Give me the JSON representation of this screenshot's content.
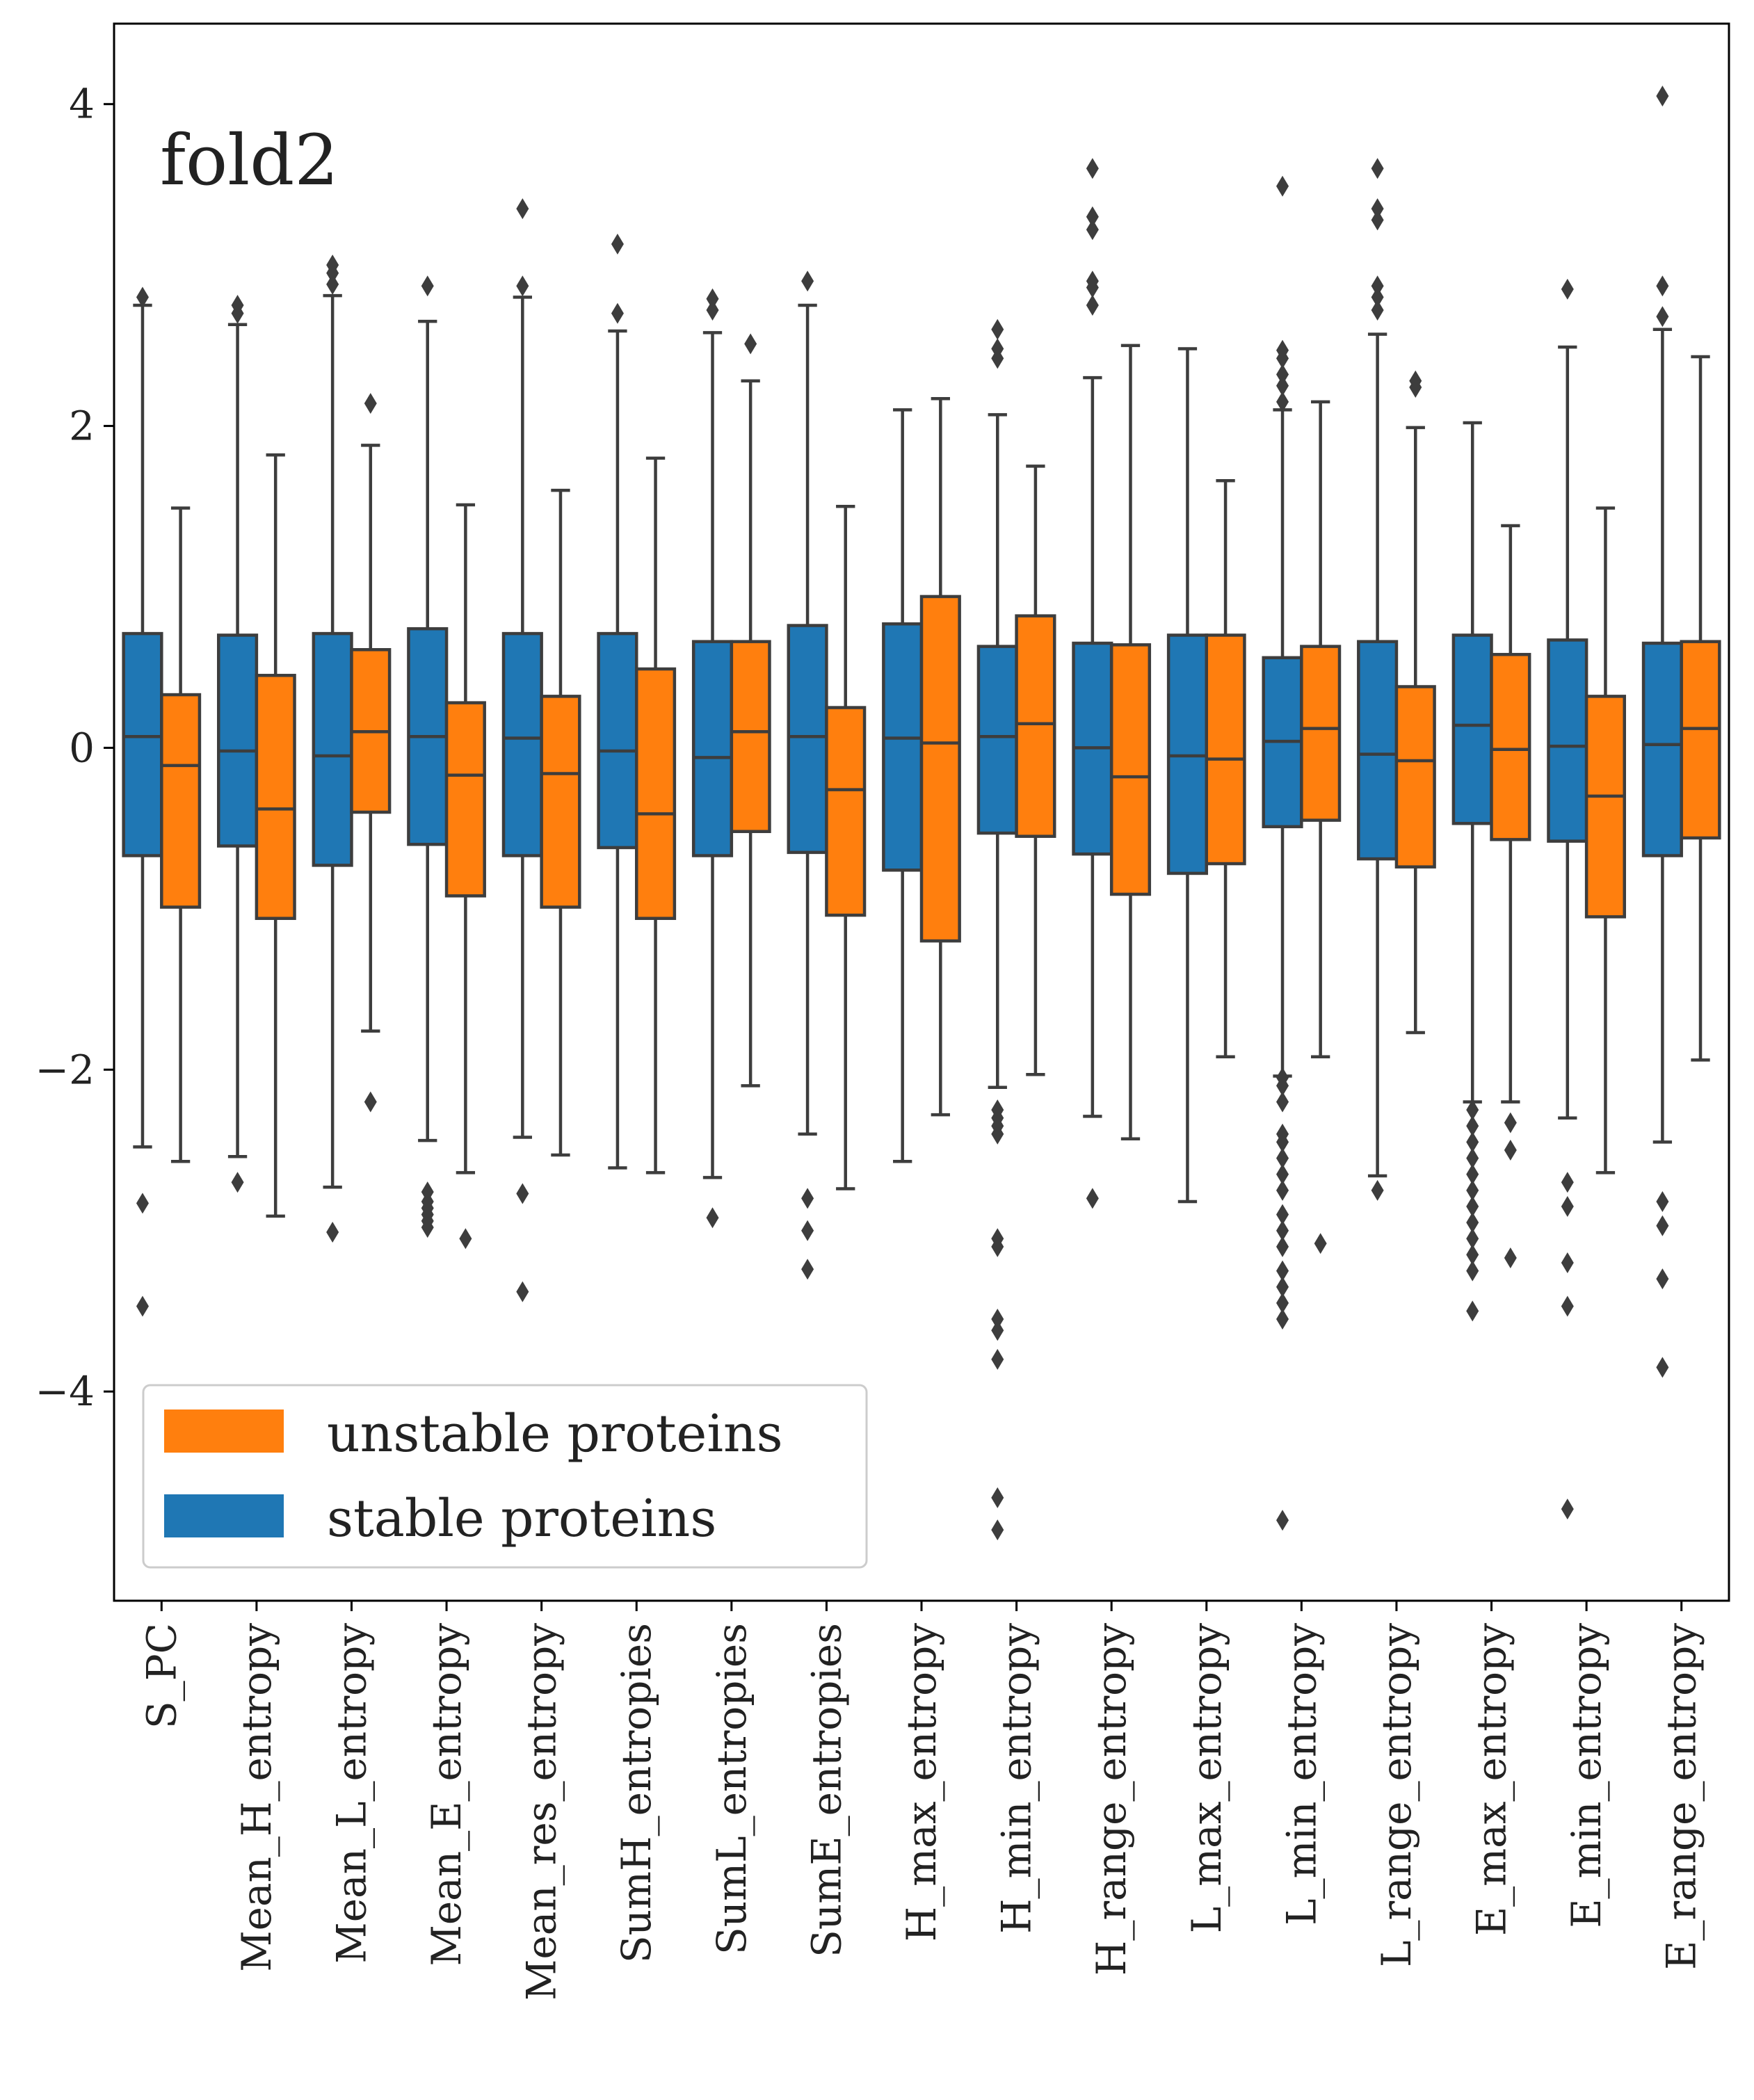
{
  "chart_data": {
    "type": "boxplot",
    "annotation": "fold2",
    "xlabel": "",
    "ylabel": "",
    "ylim": [
      -5.3,
      4.5
    ],
    "yticks": [
      -4,
      -2,
      0,
      2,
      4
    ],
    "ytick_labels": [
      "−4",
      "−2",
      "0",
      "2",
      "4"
    ],
    "grid": false,
    "legend_position": "bottom-left",
    "legend": [
      {
        "label": "unstable proteins",
        "color": "#ff7f0e"
      },
      {
        "label": "stable proteins",
        "color": "#1f77b4"
      }
    ],
    "colors": {
      "stable": "#1f77b4",
      "unstable": "#ff7f0e",
      "edge": "#3d3d3d"
    },
    "categories": [
      "S_PC",
      "Mean_H_entropy",
      "Mean_L_entropy",
      "Mean_E_entropy",
      "Mean_res_entropy",
      "SumH_entropies",
      "SumL_entropies",
      "SumE_entropies",
      "H_max_entropy",
      "H_min_entropy",
      "H_range_entropy",
      "L_max_entropy",
      "L_min_entropy",
      "L_range_entropy",
      "E_max_entropy",
      "E_min_entropy",
      "E_range_entropy"
    ],
    "series": [
      {
        "name": "stable proteins",
        "color": "#1f77b4",
        "boxes": [
          {
            "wlo": -2.48,
            "q1": -0.67,
            "med": 0.07,
            "q3": 0.71,
            "whi": 2.75,
            "outliers": [
              2.8,
              -2.83,
              -3.47
            ]
          },
          {
            "wlo": -2.54,
            "q1": -0.61,
            "med": -0.02,
            "q3": 0.7,
            "whi": 2.63,
            "outliers": [
              2.75,
              2.7,
              -2.7
            ]
          },
          {
            "wlo": -2.73,
            "q1": -0.73,
            "med": -0.05,
            "q3": 0.71,
            "whi": 2.81,
            "outliers": [
              3.0,
              2.95,
              2.88,
              -3.01
            ]
          },
          {
            "wlo": -2.44,
            "q1": -0.6,
            "med": 0.07,
            "q3": 0.74,
            "whi": 2.65,
            "outliers": [
              2.87,
              -2.76,
              -2.82,
              -2.86,
              -2.9,
              -2.94,
              -2.98
            ]
          },
          {
            "wlo": -2.42,
            "q1": -0.67,
            "med": 0.06,
            "q3": 0.71,
            "whi": 2.8,
            "outliers": [
              3.35,
              2.87,
              -2.77,
              -3.38
            ]
          },
          {
            "wlo": -2.61,
            "q1": -0.62,
            "med": -0.02,
            "q3": 0.71,
            "whi": 2.59,
            "outliers": [
              3.13,
              2.7
            ]
          },
          {
            "wlo": -2.67,
            "q1": -0.67,
            "med": -0.06,
            "q3": 0.66,
            "whi": 2.58,
            "outliers": [
              2.79,
              2.72,
              -2.92
            ]
          },
          {
            "wlo": -2.4,
            "q1": -0.65,
            "med": 0.07,
            "q3": 0.76,
            "whi": 2.75,
            "outliers": [
              2.9,
              -2.8,
              -3.0,
              -3.24
            ]
          },
          {
            "wlo": -2.57,
            "q1": -0.76,
            "med": 0.06,
            "q3": 0.77,
            "whi": 2.1,
            "outliers": []
          },
          {
            "wlo": -2.11,
            "q1": -0.53,
            "med": 0.07,
            "q3": 0.63,
            "whi": 2.07,
            "outliers": [
              2.6,
              2.48,
              2.42,
              -2.25,
              -2.3,
              -2.35,
              -2.4,
              -3.05,
              -3.1,
              -3.55,
              -3.62,
              -3.8,
              -4.66,
              -4.86
            ]
          },
          {
            "wlo": -2.29,
            "q1": -0.66,
            "med": 0.0,
            "q3": 0.65,
            "whi": 2.3,
            "outliers": [
              3.6,
              3.3,
              3.22,
              2.9,
              2.86,
              2.75,
              -2.8
            ]
          },
          {
            "wlo": -2.82,
            "q1": -0.78,
            "med": -0.05,
            "q3": 0.7,
            "whi": 2.48,
            "outliers": []
          },
          {
            "wlo": -2.04,
            "q1": -0.49,
            "med": 0.04,
            "q3": 0.56,
            "whi": 2.1,
            "outliers": [
              3.49,
              2.47,
              2.42,
              2.32,
              2.25,
              2.15,
              -2.05,
              -2.1,
              -2.2,
              -2.4,
              -2.45,
              -2.55,
              -2.65,
              -2.75,
              -2.9,
              -3.0,
              -3.1,
              -3.25,
              -3.35,
              -3.45,
              -3.55,
              -4.8
            ]
          },
          {
            "wlo": -2.66,
            "q1": -0.69,
            "med": -0.04,
            "q3": 0.66,
            "whi": 2.57,
            "outliers": [
              3.6,
              3.35,
              3.28,
              2.87,
              2.8,
              2.72,
              -2.75
            ]
          },
          {
            "wlo": -2.2,
            "q1": -0.47,
            "med": 0.14,
            "q3": 0.7,
            "whi": 2.02,
            "outliers": [
              -2.25,
              -2.35,
              -2.45,
              -2.55,
              -2.65,
              -2.75,
              -2.85,
              -2.95,
              -3.05,
              -3.15,
              -3.25,
              -3.5
            ]
          },
          {
            "wlo": -2.3,
            "q1": -0.58,
            "med": 0.01,
            "q3": 0.67,
            "whi": 2.49,
            "outliers": [
              2.85,
              -2.7,
              -2.85,
              -3.2,
              -3.47,
              -4.73
            ]
          },
          {
            "wlo": -2.45,
            "q1": -0.67,
            "med": 0.02,
            "q3": 0.65,
            "whi": 2.6,
            "outliers": [
              4.05,
              2.87,
              2.68,
              -2.82,
              -2.97,
              -3.3,
              -3.85
            ]
          }
        ]
      },
      {
        "name": "unstable proteins",
        "color": "#ff7f0e",
        "boxes": [
          {
            "wlo": -2.57,
            "q1": -0.99,
            "med": -0.11,
            "q3": 0.33,
            "whi": 1.49,
            "outliers": []
          },
          {
            "wlo": -2.91,
            "q1": -1.06,
            "med": -0.38,
            "q3": 0.45,
            "whi": 1.82,
            "outliers": []
          },
          {
            "wlo": -1.76,
            "q1": -0.4,
            "med": 0.1,
            "q3": 0.61,
            "whi": 1.88,
            "outliers": [
              2.14,
              -2.2
            ]
          },
          {
            "wlo": -2.64,
            "q1": -0.92,
            "med": -0.17,
            "q3": 0.28,
            "whi": 1.51,
            "outliers": [
              -3.05
            ]
          },
          {
            "wlo": -2.53,
            "q1": -0.99,
            "med": -0.16,
            "q3": 0.32,
            "whi": 1.6,
            "outliers": []
          },
          {
            "wlo": -2.64,
            "q1": -1.06,
            "med": -0.41,
            "q3": 0.49,
            "whi": 1.8,
            "outliers": []
          },
          {
            "wlo": -2.1,
            "q1": -0.52,
            "med": 0.1,
            "q3": 0.66,
            "whi": 2.28,
            "outliers": [
              2.51
            ]
          },
          {
            "wlo": -2.74,
            "q1": -1.04,
            "med": -0.26,
            "q3": 0.25,
            "whi": 1.5,
            "outliers": []
          },
          {
            "wlo": -2.28,
            "q1": -1.2,
            "med": 0.03,
            "q3": 0.94,
            "whi": 2.17,
            "outliers": []
          },
          {
            "wlo": -2.03,
            "q1": -0.55,
            "med": 0.15,
            "q3": 0.82,
            "whi": 1.75,
            "outliers": []
          },
          {
            "wlo": -2.43,
            "q1": -0.91,
            "med": -0.18,
            "q3": 0.64,
            "whi": 2.5,
            "outliers": []
          },
          {
            "wlo": -1.92,
            "q1": -0.72,
            "med": -0.07,
            "q3": 0.7,
            "whi": 1.66,
            "outliers": []
          },
          {
            "wlo": -1.92,
            "q1": -0.45,
            "med": 0.12,
            "q3": 0.63,
            "whi": 2.15,
            "outliers": [
              -3.08
            ]
          },
          {
            "wlo": -1.77,
            "q1": -0.74,
            "med": -0.08,
            "q3": 0.38,
            "whi": 1.99,
            "outliers": [
              2.28,
              2.24
            ]
          },
          {
            "wlo": -2.2,
            "q1": -0.57,
            "med": -0.01,
            "q3": 0.58,
            "whi": 1.38,
            "outliers": [
              -2.33,
              -2.5,
              -3.17
            ]
          },
          {
            "wlo": -2.64,
            "q1": -1.05,
            "med": -0.3,
            "q3": 0.32,
            "whi": 1.49,
            "outliers": []
          },
          {
            "wlo": -1.94,
            "q1": -0.56,
            "med": 0.12,
            "q3": 0.66,
            "whi": 2.43,
            "outliers": []
          }
        ]
      }
    ]
  }
}
